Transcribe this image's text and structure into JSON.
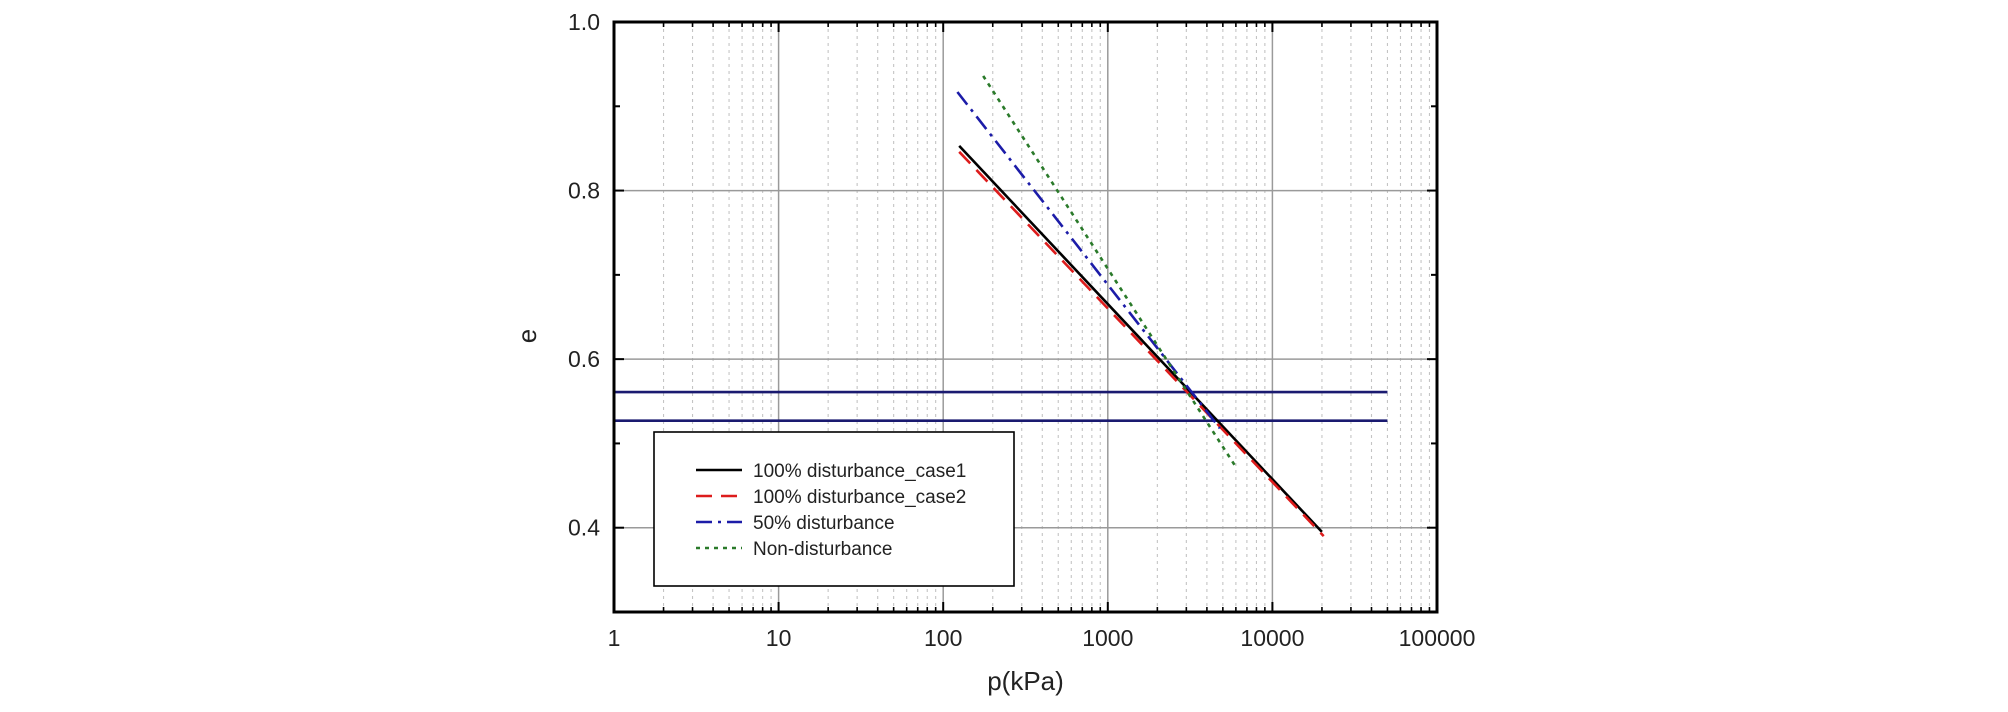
{
  "chart_data": {
    "type": "line",
    "title": "",
    "xlabel": "p(kPa)",
    "ylabel": "e",
    "xscale": "log",
    "xlim": [
      1,
      100000
    ],
    "ylim": [
      0.3,
      1.0
    ],
    "x_ticks": [
      1,
      10,
      100,
      1000,
      10000,
      100000
    ],
    "x_tick_labels": [
      "1",
      "10",
      "100",
      "1000",
      "10000",
      "100000"
    ],
    "y_ticks": [
      0.4,
      0.6,
      0.8,
      1.0
    ],
    "y_tick_labels": [
      "0.4",
      "0.6",
      "0.8",
      "1.0"
    ],
    "grid": true,
    "legend_position": "lower-left",
    "series": [
      {
        "name": "100% disturbance_case1",
        "color": "#000000",
        "dash": "solid",
        "x": [
          125,
          20000
        ],
        "y": [
          0.853,
          0.395
        ]
      },
      {
        "name": "100% disturbance_case2",
        "color": "#dd1c1c",
        "dash": "dash",
        "x": [
          125,
          20500
        ],
        "y": [
          0.846,
          0.39
        ]
      },
      {
        "name": "50% disturbance",
        "color": "#1c1ca8",
        "dash": "dashdot",
        "x": [
          122,
          4800
        ],
        "y": [
          0.917,
          0.518
        ]
      },
      {
        "name": "Non-disturbance",
        "color": "#2a7a2a",
        "dash": "dot",
        "x": [
          175,
          6000
        ],
        "y": [
          0.936,
          0.472
        ]
      }
    ],
    "reference_lines": [
      {
        "type": "horizontal",
        "y": 0.561,
        "x_range": [
          1,
          50000
        ],
        "color": "#1a1a70"
      },
      {
        "type": "horizontal",
        "y": 0.527,
        "x_range": [
          1,
          50000
        ],
        "color": "#1a1a70"
      }
    ]
  }
}
